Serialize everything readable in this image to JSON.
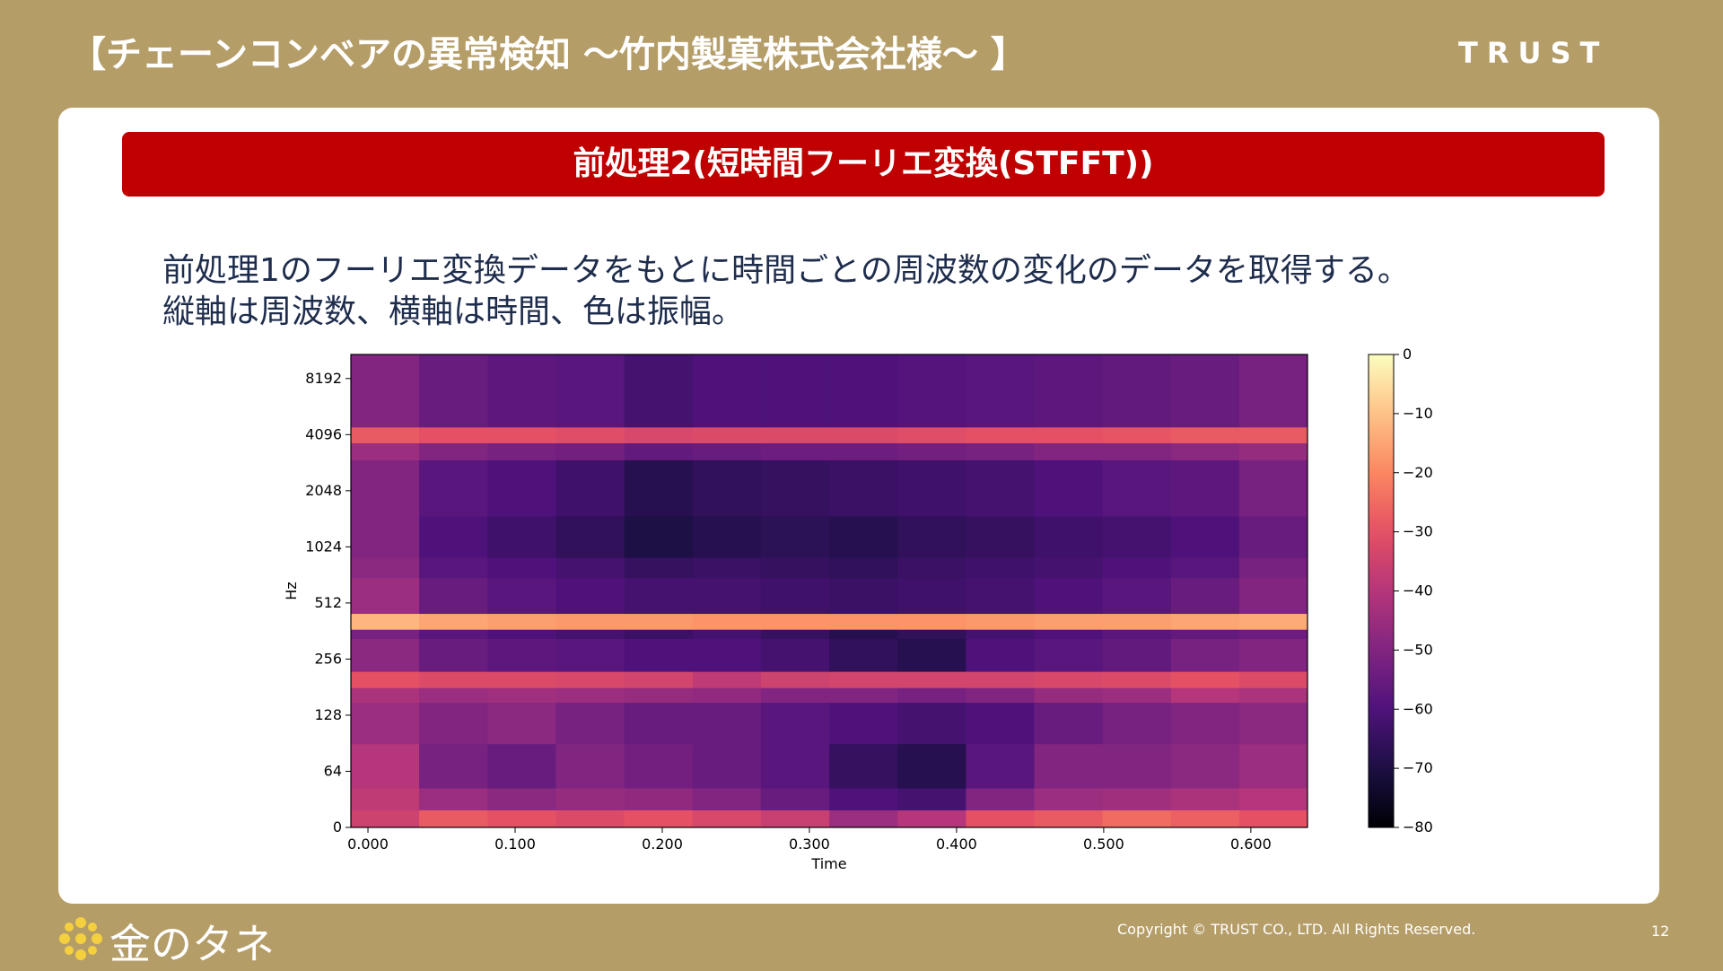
{
  "header": {
    "title": "【チェーンコンベアの異常検知 ～竹内製菓株式会社様～ 】",
    "brand": "TRUST"
  },
  "banner": "前処理2(短時間フーリエ変換(STFFT))",
  "body": [
    "前処理1のフーリエ変換データをもとに時間ごとの周波数の変化のデータを取得する。",
    "縦軸は周波数、横軸は時間、色は振幅。"
  ],
  "chart_data": {
    "type": "spectrogram",
    "xlabel": "Time",
    "ylabel": "Hz",
    "yscale": "symlog",
    "linthresh": 64,
    "colormap": "magma",
    "xlim": [
      -0.0116,
      0.6385
    ],
    "ylim": [
      0,
      11025
    ],
    "xticks": [
      {
        "value": 0,
        "label": "0.000"
      },
      {
        "value": 0.1,
        "label": "0.100"
      },
      {
        "value": 0.2,
        "label": "0.200"
      },
      {
        "value": 0.3,
        "label": "0.300"
      },
      {
        "value": 0.4,
        "label": "0.400"
      },
      {
        "value": 0.5,
        "label": "0.500"
      },
      {
        "value": 0.6,
        "label": "0.600"
      }
    ],
    "yticks": [
      0,
      64,
      128,
      256,
      512,
      1024,
      2048,
      4096,
      8192
    ],
    "clim": [
      -80,
      0
    ],
    "cticks": [
      0,
      {
        "value": -10,
        "label": "−10"
      },
      {
        "value": -20,
        "label": "−20"
      },
      {
        "value": -30,
        "label": "−30"
      },
      {
        "value": -40,
        "label": "−40"
      },
      {
        "value": -50,
        "label": "−50"
      },
      {
        "value": -60,
        "label": "−60"
      },
      {
        "value": -70,
        "label": "−70"
      },
      {
        "value": -80,
        "label": "−80"
      }
    ],
    "x_edges": [
      -0.0116,
      0.0348,
      0.0813,
      0.1277,
      0.1742,
      0.2206,
      0.267,
      0.3135,
      0.3599,
      0.4064,
      0.4528,
      0.4992,
      0.5457,
      0.5921,
      0.6385
    ],
    "y_edges": [
      0,
      20,
      45,
      90,
      150,
      180,
      220,
      330,
      370,
      450,
      700,
      900,
      1500,
      3000,
      3700,
      4500,
      11025
    ],
    "values": [
      [
        -35,
        -28,
        -30,
        -32,
        -30,
        -33,
        -36,
        -45,
        -40,
        -30,
        -28,
        -25,
        -27,
        -30
      ],
      [
        -38,
        -45,
        -48,
        -46,
        -47,
        -50,
        -55,
        -60,
        -62,
        -50,
        -45,
        -44,
        -42,
        -40
      ],
      [
        -40,
        -52,
        -55,
        -50,
        -53,
        -55,
        -58,
        -65,
        -68,
        -58,
        -50,
        -50,
        -48,
        -45
      ],
      [
        -45,
        -50,
        -48,
        -52,
        -55,
        -55,
        -58,
        -60,
        -62,
        -60,
        -55,
        -52,
        -50,
        -48
      ],
      [
        -42,
        -45,
        -44,
        -45,
        -46,
        -47,
        -50,
        -50,
        -52,
        -50,
        -46,
        -45,
        -40,
        -42
      ],
      [
        -30,
        -32,
        -32,
        -33,
        -34,
        -38,
        -35,
        -34,
        -34,
        -34,
        -33,
        -32,
        -30,
        -32
      ],
      [
        -48,
        -55,
        -57,
        -58,
        -60,
        -60,
        -62,
        -66,
        -68,
        -60,
        -58,
        -56,
        -52,
        -50
      ],
      [
        -52,
        -58,
        -60,
        -62,
        -64,
        -62,
        -65,
        -68,
        -66,
        -62,
        -60,
        -58,
        -56,
        -54
      ],
      [
        -12,
        -15,
        -16,
        -17,
        -17,
        -18,
        -18,
        -18,
        -18,
        -17,
        -16,
        -16,
        -15,
        -14
      ],
      [
        -45,
        -55,
        -58,
        -60,
        -62,
        -62,
        -63,
        -64,
        -63,
        -62,
        -60,
        -58,
        -55,
        -50
      ],
      [
        -48,
        -58,
        -60,
        -62,
        -65,
        -64,
        -65,
        -66,
        -64,
        -63,
        -62,
        -60,
        -58,
        -52
      ],
      [
        -50,
        -60,
        -63,
        -66,
        -70,
        -68,
        -67,
        -68,
        -66,
        -65,
        -63,
        -62,
        -60,
        -55
      ],
      [
        -50,
        -58,
        -60,
        -63,
        -68,
        -66,
        -65,
        -64,
        -63,
        -62,
        -60,
        -58,
        -57,
        -52
      ],
      [
        -45,
        -50,
        -52,
        -53,
        -56,
        -55,
        -54,
        -54,
        -53,
        -52,
        -50,
        -50,
        -48,
        -46
      ],
      [
        -28,
        -30,
        -30,
        -31,
        -33,
        -32,
        -32,
        -32,
        -31,
        -30,
        -30,
        -29,
        -28,
        -28
      ],
      [
        -50,
        -55,
        -57,
        -58,
        -62,
        -60,
        -60,
        -60,
        -59,
        -58,
        -57,
        -56,
        -55,
        -52
      ]
    ]
  },
  "footer": {
    "logo": "金のタネ",
    "copyright": "Copyright © TRUST CO., LTD. All Rights Reserved.",
    "page": "12"
  }
}
